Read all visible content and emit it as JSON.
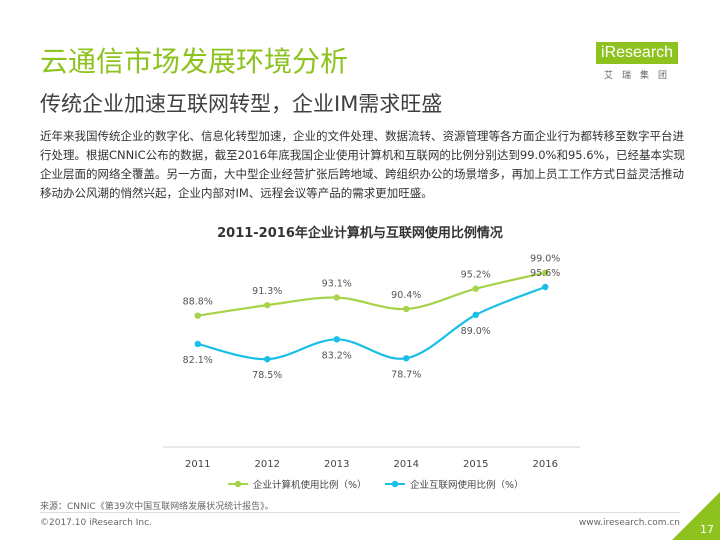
{
  "header": {
    "title": "云通信市场发展环境分析",
    "subtitle": "传统企业加速互联网转型，企业IM需求旺盛"
  },
  "logo": {
    "brand_i": "i",
    "brand_rest": "Research",
    "sub": "艾瑞集团"
  },
  "intro": {
    "text": "近年来我国传统企业的数字化、信息化转型加速，企业的文件处理、数据流转、资源管理等各方面企业行为都转移至数字平台进行处理。根据CNNIC公布的数据，截至2016年底我国企业使用计算机和互联网的比例分别达到99.0%和95.6%，已经基本实现企业层面的网络全覆盖。另一方面，大中型企业经营扩张后跨地域、跨组织办公的场景增多，再加上员工工作方式日益灵活推动移动办公风潮的悄然兴起，企业内部对IM、远程会议等产品的需求更加旺盛。"
  },
  "chart_data": {
    "type": "line",
    "title": "2011-2016年企业计算机与互联网使用比例情况",
    "categories": [
      "2011",
      "2012",
      "2013",
      "2014",
      "2015",
      "2016"
    ],
    "series": [
      {
        "name": "企业计算机使用比例（%）",
        "values": [
          88.8,
          91.3,
          93.1,
          90.4,
          95.2,
          99.0
        ],
        "labels": [
          "88.8%",
          "91.3%",
          "93.1%",
          "90.4%",
          "95.2%",
          "99.0%"
        ],
        "color": "#a6d34a",
        "label_position": [
          "above",
          "above",
          "above",
          "above",
          "above",
          "above"
        ]
      },
      {
        "name": "企业互联网使用比例（%）",
        "values": [
          82.1,
          78.5,
          83.2,
          78.7,
          89.0,
          95.6
        ],
        "labels": [
          "82.1%",
          "78.5%",
          "83.2%",
          "78.7%",
          "89.0%",
          "95.6%"
        ],
        "color": "#19bfe6",
        "label_position": [
          "below",
          "below",
          "below",
          "below",
          "below",
          "above"
        ]
      }
    ],
    "xlabel": "",
    "ylabel": "",
    "ylim": [
      70,
      102
    ],
    "grid": false,
    "legend": "bottom"
  },
  "footer": {
    "source": "来源：CNNIC《第39次中国互联网络发展状况统计报告》。",
    "copyright": "©2017.10 iResearch Inc.",
    "website": "www.iresearch.com.cn",
    "page_number": "17"
  },
  "colors": {
    "accent": "#8dc21f",
    "title": "#8dc21f"
  }
}
